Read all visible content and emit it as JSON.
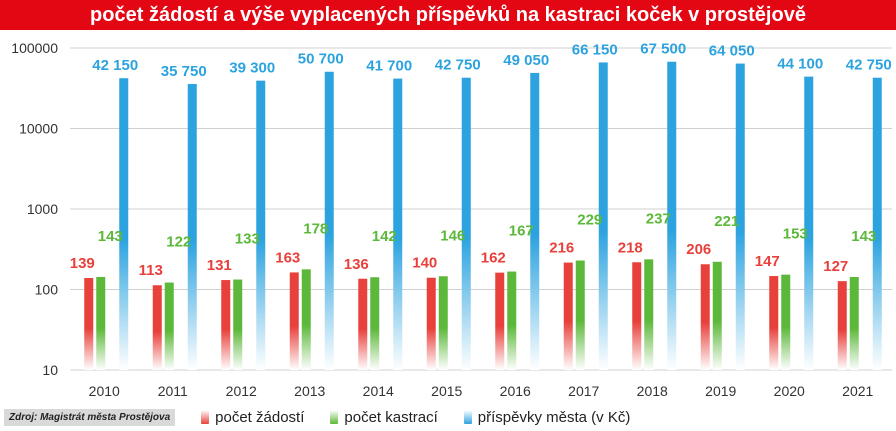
{
  "title": "počet žádostí a výše vyplacených příspěvků na kastraci koček v prostějově",
  "source": "Zdroj: Magistrát města Prostějova",
  "colors": {
    "title_bg": "#e30613",
    "pocet_zadosti": "#e8413c",
    "pocet_kastraci": "#5cb83a",
    "prispevky_mesta": "#2ca3df"
  },
  "legend": [
    {
      "name": "počet žádostí",
      "color": "#e8413c"
    },
    {
      "name": "počet kastrací",
      "color": "#5cb83a"
    },
    {
      "name": "příspěvky města (v Kč)",
      "color": "#2ca3df"
    }
  ],
  "chart_data": {
    "type": "bar",
    "title": "počet žádostí a výše vyplacených příspěvků na kastraci koček v prostějově",
    "y_scale": "log",
    "ylim": [
      10,
      100000
    ],
    "y_ticks": [
      "10",
      "100",
      "1000",
      "10000",
      "100000"
    ],
    "grid": true,
    "legend_position": "bottom",
    "categories": [
      "2010",
      "2011",
      "2012",
      "2013",
      "2014",
      "2015",
      "2016",
      "2017",
      "2018",
      "2019",
      "2020",
      "2021"
    ],
    "series": [
      {
        "name": "počet žádostí",
        "color": "#e8413c",
        "values": [
          139,
          113,
          131,
          163,
          136,
          140,
          162,
          216,
          218,
          206,
          147,
          127
        ],
        "labels": [
          "139",
          "113",
          "131",
          "163",
          "136",
          "140",
          "162",
          "216",
          "218",
          "206",
          "147",
          "127"
        ]
      },
      {
        "name": "počet kastrací",
        "color": "#5cb83a",
        "values": [
          143,
          122,
          133,
          178,
          142,
          146,
          167,
          229,
          237,
          221,
          153,
          143
        ],
        "labels": [
          "143",
          "122",
          "133",
          "178",
          "142",
          "146",
          "167",
          "229",
          "237",
          "221",
          "153",
          "143"
        ]
      },
      {
        "name": "příspěvky města (v Kč)",
        "color": "#2ca3df",
        "values": [
          42150,
          35750,
          39300,
          50700,
          41700,
          42750,
          49050,
          66150,
          67500,
          64050,
          44100,
          42750
        ],
        "labels": [
          "42 150",
          "35 750",
          "39 300",
          "50 700",
          "41 700",
          "42 750",
          "49 050",
          "66 150",
          "67 500",
          "64 050",
          "44 100",
          "42 750"
        ]
      }
    ]
  }
}
